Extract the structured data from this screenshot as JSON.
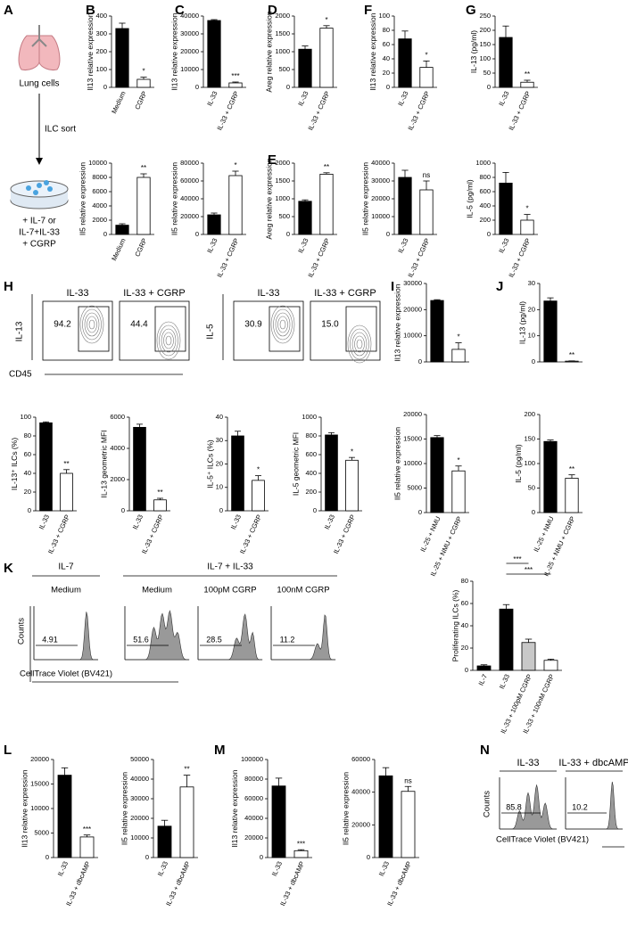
{
  "panel_letters": [
    "A",
    "B",
    "C",
    "D",
    "E",
    "F",
    "G",
    "H",
    "I",
    "J",
    "K",
    "L",
    "M",
    "N"
  ],
  "schematic": {
    "top": "Lung cells",
    "arrow": "ILC sort",
    "condition": [
      "+ IL-7 or",
      "IL-7+IL-33",
      "+ CGRP"
    ]
  },
  "flow_H": {
    "panels": [
      {
        "title": "IL-33",
        "gate": "94.2"
      },
      {
        "title": "IL-33 + CGRP",
        "gate": "44.4"
      },
      {
        "title": "IL-33",
        "gate": "30.9"
      },
      {
        "title": "IL-33 + CGRP",
        "gate": "15.0"
      }
    ],
    "y_labels": [
      "IL-13",
      "IL-5"
    ],
    "x_label": "CD45"
  },
  "flow_K": {
    "groups": [
      "IL-7",
      "IL-7 + IL-33"
    ],
    "panels": [
      {
        "condition": "Medium",
        "gate": "4.91"
      },
      {
        "condition": "Medium",
        "gate": "51.6"
      },
      {
        "condition": "100pM CGRP",
        "gate": "28.5"
      },
      {
        "condition": "100nM CGRP",
        "gate": "11.2"
      }
    ],
    "y_label": "Counts",
    "x_label": "CellTrace Violet (BV421)"
  },
  "flow_N": {
    "panels": [
      {
        "title": "IL-33",
        "gate": "85.8"
      },
      {
        "title": "IL-33 + dbcAMP",
        "gate": "10.2"
      }
    ],
    "y_label": "Counts",
    "x_label": "CellTrace Violet (BV421)"
  },
  "chart_data": [
    {
      "type": "bar",
      "ylabel": "Il13 relative expression",
      "categories": [
        "Medium",
        "CGRP"
      ],
      "values": [
        330,
        45
      ],
      "errors": [
        30,
        12
      ],
      "colors": [
        "#000000",
        "#ffffff"
      ],
      "significance": "*",
      "ylim": [
        0,
        400
      ],
      "yticks": [
        0,
        100,
        200,
        300,
        400
      ]
    },
    {
      "type": "bar",
      "ylabel": "Il5 relative expression",
      "categories": [
        "Medium",
        "CGRP"
      ],
      "values": [
        1300,
        8000
      ],
      "errors": [
        200,
        500
      ],
      "colors": [
        "#000000",
        "#ffffff"
      ],
      "significance": "**",
      "ylim": [
        0,
        10000
      ],
      "yticks": [
        0,
        2000,
        4000,
        6000,
        8000,
        10000
      ]
    },
    {
      "type": "bar",
      "ylabel": "Il13 relative expression",
      "categories": [
        "IL-33",
        "IL-33 + CGRP"
      ],
      "values": [
        37500,
        2500
      ],
      "errors": [
        500,
        500
      ],
      "colors": [
        "#000000",
        "#ffffff"
      ],
      "significance": "***",
      "ylim": [
        0,
        40000
      ],
      "yticks": [
        0,
        10000,
        20000,
        30000,
        40000
      ]
    },
    {
      "type": "bar",
      "ylabel": "Il5 relative expression",
      "categories": [
        "IL-33",
        "IL-33 + CGRP"
      ],
      "values": [
        22000,
        66000
      ],
      "errors": [
        2000,
        5000
      ],
      "colors": [
        "#000000",
        "#ffffff"
      ],
      "significance": "*",
      "ylim": [
        0,
        80000
      ],
      "yticks": [
        0,
        20000,
        40000,
        60000,
        80000
      ]
    },
    {
      "type": "bar",
      "ylabel": "Areg relative expression",
      "categories": [
        "IL-33",
        "IL-33 + CGRP"
      ],
      "values": [
        1070,
        1660
      ],
      "errors": [
        90,
        70
      ],
      "colors": [
        "#000000",
        "#ffffff"
      ],
      "significance": "*",
      "ylim": [
        0,
        2000
      ],
      "yticks": [
        0,
        500,
        1000,
        1500,
        2000
      ]
    },
    {
      "type": "bar",
      "ylabel": "Areg relative expression",
      "categories": [
        "IL-33",
        "IL-33 + CGRP"
      ],
      "values": [
        930,
        1690
      ],
      "errors": [
        40,
        40
      ],
      "colors": [
        "#000000",
        "#ffffff"
      ],
      "significance": "**",
      "ylim": [
        0,
        2000
      ],
      "yticks": [
        0,
        500,
        1000,
        1500,
        2000
      ]
    },
    {
      "type": "bar",
      "ylabel": "Il13 relative expression",
      "categories": [
        "IL-33",
        "IL-33 + CGRP"
      ],
      "values": [
        68,
        28
      ],
      "errors": [
        11,
        9
      ],
      "colors": [
        "#000000",
        "#ffffff"
      ],
      "significance": "*",
      "ylim": [
        0,
        100
      ],
      "yticks": [
        0,
        20,
        40,
        60,
        80,
        100
      ]
    },
    {
      "type": "bar",
      "ylabel": "Il5 relative expression",
      "categories": [
        "IL-33",
        "IL-33 + CGRP"
      ],
      "values": [
        32000,
        25000
      ],
      "errors": [
        4000,
        5000
      ],
      "colors": [
        "#000000",
        "#ffffff"
      ],
      "significance": "ns",
      "ylim": [
        0,
        40000
      ],
      "yticks": [
        0,
        10000,
        20000,
        30000,
        40000
      ]
    },
    {
      "type": "bar",
      "ylabel": "IL-13 (pg/ml)",
      "categories": [
        "IL-33",
        "IL-33 + CGRP"
      ],
      "values": [
        175,
        18
      ],
      "errors": [
        40,
        7
      ],
      "colors": [
        "#000000",
        "#ffffff"
      ],
      "significance": "**",
      "ylim": [
        0,
        250
      ],
      "yticks": [
        0,
        50,
        100,
        150,
        200,
        250
      ]
    },
    {
      "type": "bar",
      "ylabel": "IL-5 (pg/ml)",
      "categories": [
        "IL-33",
        "IL-33 + CGRP"
      ],
      "values": [
        720,
        200
      ],
      "errors": [
        150,
        80
      ],
      "colors": [
        "#000000",
        "#ffffff"
      ],
      "significance": "*",
      "ylim": [
        0,
        1000
      ],
      "yticks": [
        0,
        200,
        400,
        600,
        800,
        1000
      ]
    },
    {
      "type": "bar",
      "ylabel": "IL-13⁺ ILCs (%)",
      "categories": [
        "IL-33",
        "IL-33 + CGRP"
      ],
      "values": [
        94,
        40
      ],
      "errors": [
        1,
        4
      ],
      "colors": [
        "#000000",
        "#ffffff"
      ],
      "significance": "**",
      "ylim": [
        0,
        100
      ],
      "yticks": [
        0,
        20,
        40,
        60,
        80,
        100
      ]
    },
    {
      "type": "bar",
      "ylabel": "IL-13 geometric MFI",
      "categories": [
        "IL-33",
        "IL-33 + CGRP"
      ],
      "values": [
        5350,
        700
      ],
      "errors": [
        200,
        100
      ],
      "colors": [
        "#000000",
        "#ffffff"
      ],
      "significance": "**",
      "ylim": [
        0,
        6000
      ],
      "yticks": [
        0,
        2000,
        4000,
        6000
      ]
    },
    {
      "type": "bar",
      "ylabel": "IL-5⁺ ILCs (%)",
      "categories": [
        "IL-33",
        "IL-33 + CGRP"
      ],
      "values": [
        32,
        13
      ],
      "errors": [
        2,
        2
      ],
      "colors": [
        "#000000",
        "#ffffff"
      ],
      "significance": "*",
      "ylim": [
        0,
        40
      ],
      "yticks": [
        0,
        10,
        20,
        30,
        40
      ]
    },
    {
      "type": "bar",
      "ylabel": "IL-5 geometric MFI",
      "categories": [
        "IL-33",
        "IL-33 + CGRP"
      ],
      "values": [
        810,
        540
      ],
      "errors": [
        25,
        30
      ],
      "colors": [
        "#000000",
        "#ffffff"
      ],
      "significance": "*",
      "ylim": [
        0,
        1000
      ],
      "yticks": [
        0,
        200,
        400,
        600,
        800,
        1000
      ]
    },
    {
      "type": "bar",
      "ylabel": "Il13 relative expression",
      "categories": [
        null,
        null
      ],
      "values": [
        23500,
        4800
      ],
      "errors": [
        300,
        2500
      ],
      "colors": [
        "#000000",
        "#ffffff"
      ],
      "significance": "*",
      "ylim": [
        0,
        30000
      ],
      "yticks": [
        0,
        10000,
        20000,
        30000
      ]
    },
    {
      "type": "bar",
      "ylabel": "Il5 relative expression",
      "categories": [
        "IL-25 + NMU",
        "IL-25 + NMU + CGRP"
      ],
      "values": [
        15300,
        8500
      ],
      "errors": [
        400,
        1000
      ],
      "colors": [
        "#000000",
        "#ffffff"
      ],
      "significance": "*",
      "ylim": [
        0,
        20000
      ],
      "yticks": [
        0,
        5000,
        10000,
        15000,
        20000
      ]
    },
    {
      "type": "bar",
      "ylabel": "IL-13 (pg/ml)",
      "categories": [
        null,
        null
      ],
      "values": [
        23.3,
        0.3
      ],
      "errors": [
        1.2,
        0.1
      ],
      "colors": [
        "#000000",
        "#ffffff"
      ],
      "significance": "**",
      "ylim": [
        0,
        30
      ],
      "yticks": [
        0,
        10,
        20,
        30
      ]
    },
    {
      "type": "bar",
      "ylabel": "IL-5 (pg/ml)",
      "categories": [
        "IL-25 + NMU",
        "IL-25 + NMU + CGRP"
      ],
      "values": [
        145,
        70
      ],
      "errors": [
        3,
        7
      ],
      "colors": [
        "#000000",
        "#ffffff"
      ],
      "significance": "**",
      "ylim": [
        0,
        200
      ],
      "yticks": [
        0,
        50,
        100,
        150,
        200
      ]
    },
    {
      "type": "bar",
      "ylabel": "Proliferating ILCs (%)",
      "categories": [
        "IL-7",
        "IL-33",
        "IL-33 + 100pM CGRP",
        "IL-33 + 100nM CGRP"
      ],
      "values": [
        4,
        55,
        25,
        9
      ],
      "errors": [
        1,
        4,
        3,
        1
      ],
      "colors": [
        "#000000",
        "#000000",
        "#c8c8c8",
        "#ffffff"
      ],
      "significance": [
        "***",
        "***"
      ],
      "ylim": [
        0,
        80
      ],
      "yticks": [
        0,
        20,
        40,
        60,
        80
      ]
    },
    {
      "type": "bar",
      "ylabel": "Il13 relative expression",
      "categories": [
        "IL-33",
        "IL-33 + dbcAMP"
      ],
      "values": [
        16800,
        4200
      ],
      "errors": [
        1500,
        400
      ],
      "colors": [
        "#000000",
        "#ffffff"
      ],
      "significance": "***",
      "ylim": [
        0,
        20000
      ],
      "yticks": [
        0,
        5000,
        10000,
        15000,
        20000
      ]
    },
    {
      "type": "bar",
      "ylabel": "Il5 relative expression",
      "categories": [
        "IL-33",
        "IL-33 + dbcAMP"
      ],
      "values": [
        16000,
        36000
      ],
      "errors": [
        3000,
        6000
      ],
      "colors": [
        "#000000",
        "#ffffff"
      ],
      "significance": "**",
      "ylim": [
        0,
        50000
      ],
      "yticks": [
        0,
        10000,
        20000,
        30000,
        40000,
        50000
      ]
    },
    {
      "type": "bar",
      "ylabel": "Il13 relative expression",
      "categories": [
        "IL-33",
        "IL-33 + dbcAMP"
      ],
      "values": [
        73000,
        7000
      ],
      "errors": [
        8000,
        1000
      ],
      "colors": [
        "#000000",
        "#ffffff"
      ],
      "significance": "***",
      "ylim": [
        0,
        100000
      ],
      "yticks": [
        0,
        20000,
        40000,
        60000,
        80000,
        100000
      ]
    },
    {
      "type": "bar",
      "ylabel": "Il5 relative expression",
      "categories": [
        "IL-33",
        "IL-33 + dbcAMP"
      ],
      "values": [
        50000,
        40500
      ],
      "errors": [
        5000,
        3000
      ],
      "colors": [
        "#000000",
        "#ffffff"
      ],
      "significance": "ns",
      "ylim": [
        0,
        60000
      ],
      "yticks": [
        0,
        20000,
        40000,
        60000
      ]
    }
  ]
}
